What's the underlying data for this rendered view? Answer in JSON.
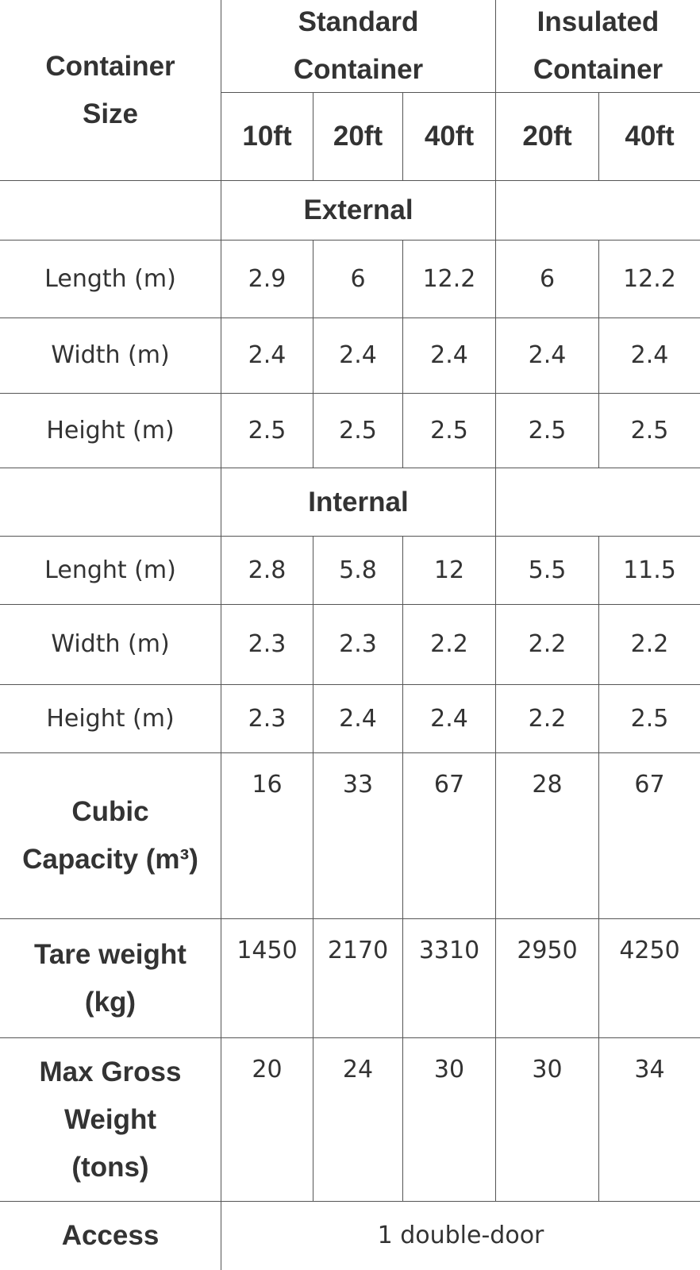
{
  "header": {
    "row_label": "Container Size",
    "groups": [
      {
        "label": "Standard Container",
        "sizes": [
          "10ft",
          "20ft",
          "40ft"
        ]
      },
      {
        "label": "Insulated Container",
        "sizes": [
          "20ft",
          "40ft"
        ]
      }
    ]
  },
  "sections": [
    {
      "title": "External",
      "rows": [
        {
          "label": "Length (m)",
          "values": [
            2.9,
            6,
            12.2,
            6,
            12.2
          ]
        },
        {
          "label": "Width (m)",
          "values": [
            2.4,
            2.4,
            2.4,
            2.4,
            2.4
          ]
        },
        {
          "label": "Height (m)",
          "values": [
            2.5,
            2.5,
            2.5,
            2.5,
            2.5
          ]
        }
      ]
    },
    {
      "title": "Internal",
      "rows": [
        {
          "label": "Lenght (m)",
          "values": [
            2.8,
            5.8,
            12,
            5.5,
            11.5
          ]
        },
        {
          "label": "Width (m)",
          "values": [
            2.3,
            2.3,
            2.2,
            2.2,
            2.2
          ]
        },
        {
          "label": "Height (m)",
          "values": [
            2.3,
            2.4,
            2.4,
            2.2,
            2.5
          ]
        }
      ]
    }
  ],
  "summary_rows": [
    {
      "label": "Cubic Capacity (m³)",
      "values": [
        16,
        33,
        67,
        28,
        67
      ]
    },
    {
      "label": "Tare weight (kg)",
      "values": [
        1450,
        2170,
        3310,
        2950,
        4250
      ]
    },
    {
      "label": "Max Gross Weight (tons)",
      "values": [
        20,
        24,
        30,
        30,
        34
      ]
    }
  ],
  "access": {
    "label": "Access",
    "value": "1 double-door"
  }
}
